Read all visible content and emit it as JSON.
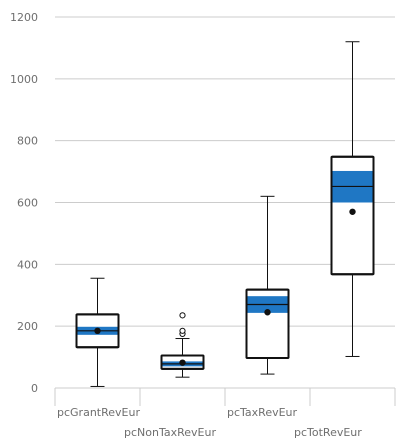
{
  "chart_data": {
    "type": "box",
    "title": "",
    "xlabel": "",
    "ylabel": "",
    "ylim": [
      0,
      1200
    ],
    "yticks": [
      0,
      200,
      400,
      600,
      800,
      1000,
      1200
    ],
    "grid": "horizontal",
    "colors": {
      "box_fill": "#ffffff",
      "box_stroke": "#111111",
      "notch_fill": "#1f77c4",
      "grid": "#cccccc",
      "mean": "#111111"
    },
    "categories": [
      "pcGrantRevEur",
      "pcNonTaxRevEur",
      "pcTaxRevEur",
      "pcTotRevEur"
    ],
    "boxes": [
      {
        "category": "pcGrantRevEur",
        "whisker_low": 5,
        "q1": 132,
        "median": 185,
        "q3": 238,
        "whisker_high": 355,
        "mean": 185,
        "ci_low": 172,
        "ci_high": 198,
        "outliers": []
      },
      {
        "category": "pcNonTaxRevEur",
        "whisker_low": 35,
        "q1": 62,
        "median": 78,
        "q3": 105,
        "whisker_high": 160,
        "mean": 82,
        "ci_low": 70,
        "ci_high": 86,
        "outliers": [
          175,
          185,
          235
        ]
      },
      {
        "category": "pcTaxRevEur",
        "whisker_low": 45,
        "q1": 97,
        "median": 270,
        "q3": 318,
        "whisker_high": 620,
        "mean": 245,
        "ci_low": 243,
        "ci_high": 297,
        "outliers": []
      },
      {
        "category": "pcTotRevEur",
        "whisker_low": 102,
        "q1": 368,
        "median": 652,
        "q3": 748,
        "whisker_high": 1120,
        "mean": 570,
        "ci_low": 600,
        "ci_high": 702,
        "outliers": []
      }
    ]
  }
}
